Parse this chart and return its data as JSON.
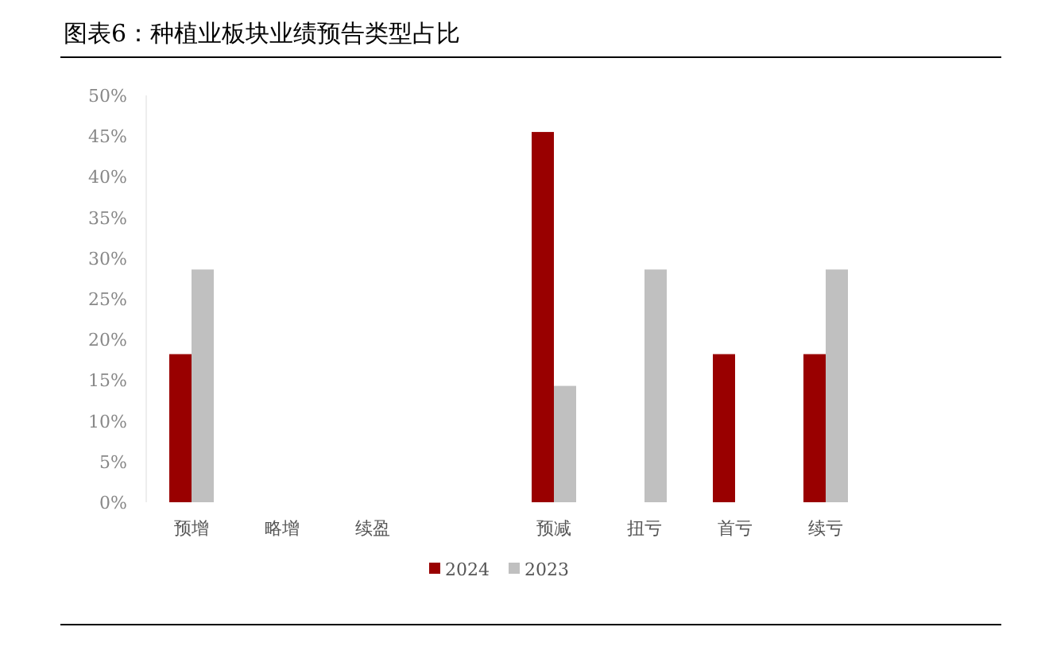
{
  "chart_data": {
    "type": "bar",
    "title": "图表6：种植业板块业绩预告类型占比",
    "categories": [
      "预增",
      "略增",
      "续盈",
      null,
      "预减",
      "扭亏",
      "首亏",
      "续亏"
    ],
    "series": [
      {
        "name": "2024",
        "color": "#990000",
        "values": [
          18.2,
          0,
          0,
          0,
          45.5,
          0,
          18.2,
          18.2
        ]
      },
      {
        "name": "2023",
        "color": "#c0c0c0",
        "values": [
          28.6,
          0,
          0,
          0,
          14.3,
          28.6,
          0,
          28.6
        ]
      }
    ],
    "ylim": [
      0,
      50
    ],
    "yticks": [
      {
        "value": 0,
        "label": "0%"
      },
      {
        "value": 5,
        "label": "5%"
      },
      {
        "value": 10,
        "label": "10%"
      },
      {
        "value": 15,
        "label": "15%"
      },
      {
        "value": 20,
        "label": "20%"
      },
      {
        "value": 25,
        "label": "25%"
      },
      {
        "value": 30,
        "label": "30%"
      },
      {
        "value": 35,
        "label": "35%"
      },
      {
        "value": 40,
        "label": "40%"
      },
      {
        "value": 45,
        "label": "45%"
      },
      {
        "value": 50,
        "label": "50%"
      }
    ],
    "grid": false,
    "legend": "bottom"
  }
}
